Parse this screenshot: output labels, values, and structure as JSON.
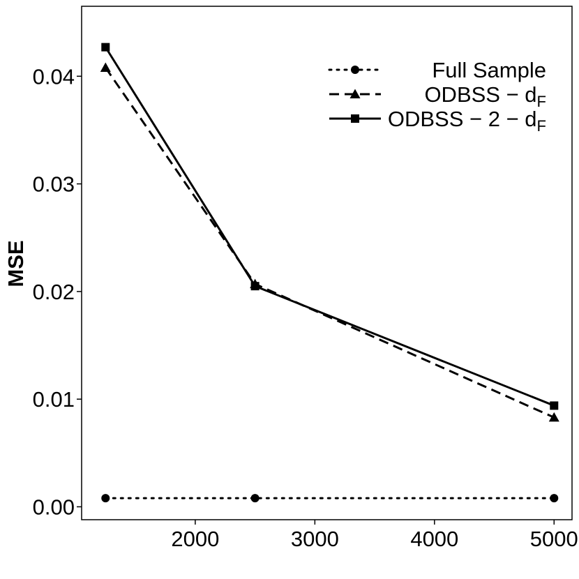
{
  "chart_data": {
    "type": "line",
    "title": "",
    "xlabel": "",
    "ylabel": "MSE",
    "x": [
      1250,
      2500,
      5000
    ],
    "xlim": [
      1050,
      5150
    ],
    "ylim": [
      -0.0012,
      0.0465
    ],
    "xticks": [
      2000,
      3000,
      4000,
      5000
    ],
    "xtick_labels": [
      "2000",
      "3000",
      "4000",
      "5000"
    ],
    "yticks": [
      0.0,
      0.01,
      0.02,
      0.03,
      0.04
    ],
    "ytick_labels": [
      "0.00",
      "0.01",
      "0.02",
      "0.03",
      "0.04"
    ],
    "grid": false,
    "legend_position": "top-right",
    "series": [
      {
        "name": "Full Sample",
        "label_main": "Full Sample",
        "label_sub": "",
        "values": [
          0.0008,
          0.0008,
          0.0008
        ],
        "line_style": "dotted",
        "marker": "circle",
        "color": "#000000"
      },
      {
        "name": "ODBSS − dF",
        "label_main": "ODBSS − d",
        "label_sub": "F",
        "values": [
          0.0408,
          0.0207,
          0.0083
        ],
        "line_style": "dashed",
        "marker": "triangle",
        "color": "#000000"
      },
      {
        "name": "ODBSS − 2 − dF",
        "label_main": "ODBSS − 2 − d",
        "label_sub": "F",
        "values": [
          0.0427,
          0.0205,
          0.0094
        ],
        "line_style": "solid",
        "marker": "square",
        "color": "#000000"
      }
    ]
  }
}
